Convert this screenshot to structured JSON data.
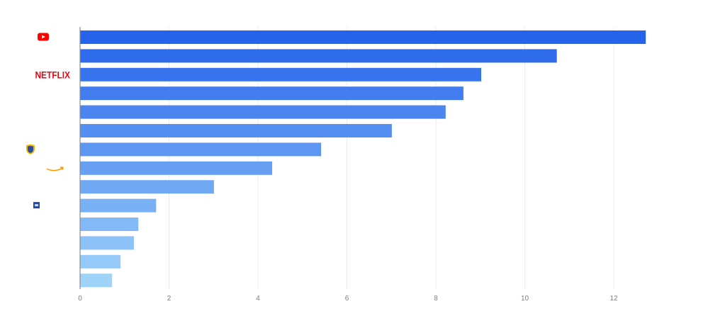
{
  "chart_data": {
    "type": "bar",
    "orientation": "horizontal",
    "title": "",
    "xlabel": "",
    "ylabel": "",
    "xlim": [
      0,
      12.72
    ],
    "xticks": [
      0,
      2,
      4,
      6,
      8,
      10,
      12
    ],
    "grid": "vertical",
    "legend": "none",
    "categories": [
      {
        "logo": "youtube-logo"
      },
      {
        "logo": ""
      },
      {
        "logo": "netflix-logo",
        "logo_text": "NETFLIX"
      },
      {
        "logo": ""
      },
      {
        "logo": ""
      },
      {
        "logo": ""
      },
      {
        "logo": "warner-bros-logo"
      },
      {
        "logo": "amazon-logo"
      },
      {
        "logo": ""
      },
      {
        "logo": "blue-square-logo"
      },
      {
        "logo": ""
      },
      {
        "logo": ""
      },
      {
        "logo": ""
      },
      {
        "logo": ""
      }
    ],
    "values": [
      12.72,
      10.72,
      9.02,
      8.62,
      8.22,
      7.01,
      5.42,
      4.32,
      3.01,
      1.71,
      1.31,
      1.21,
      0.91,
      0.72
    ],
    "colors": {
      "start": "#2563eb",
      "end": "#9fd3fa"
    }
  }
}
